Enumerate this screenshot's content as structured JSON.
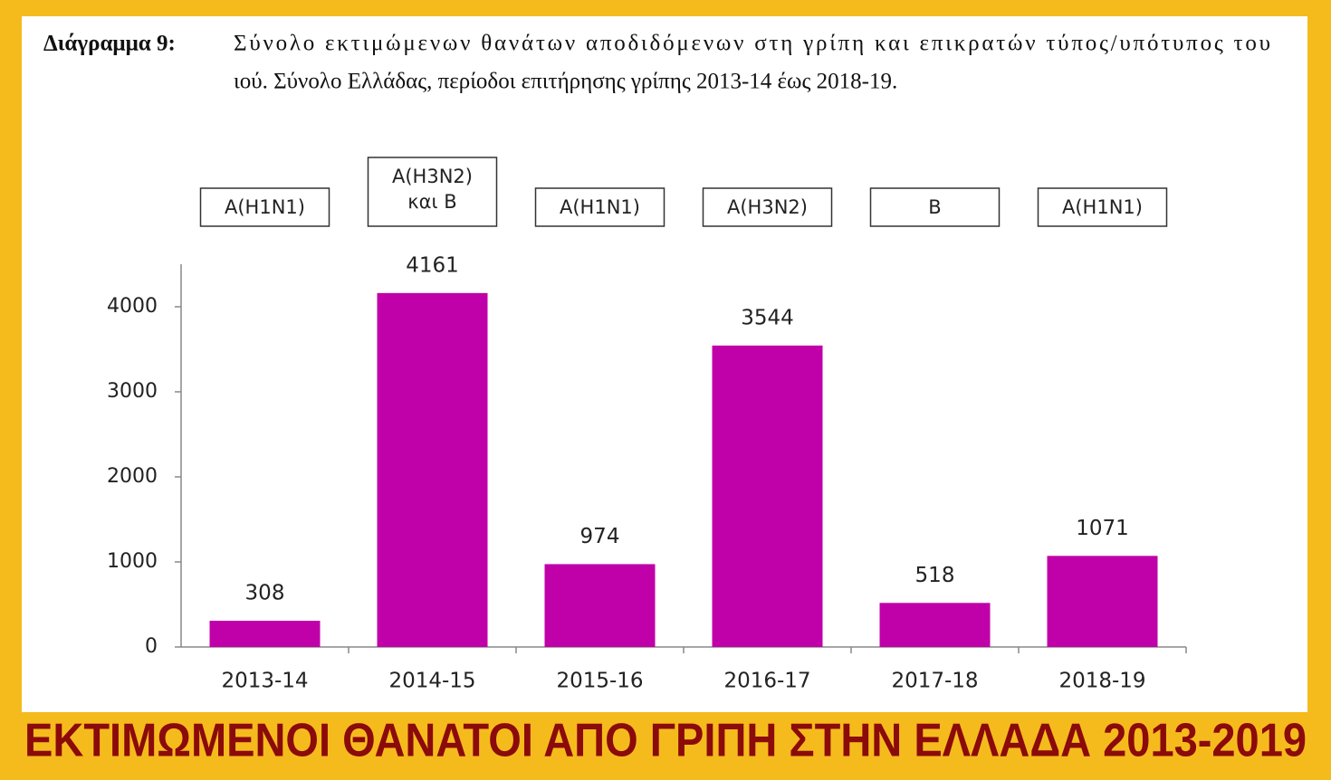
{
  "chart_data": {
    "type": "bar",
    "figure_label": "Διάγραμμα 9:",
    "caption": [
      "Σύνολο εκτιμώμενων θανάτων αποδιδόμενων στη γρίπη και επικρατών τύπος/υπότυπος του",
      "ιού. Σύνολο Ελλάδας, περίοδοι επιτήρησης γρίπης 2013-14 έως 2018-19."
    ],
    "categories": [
      "2013-14",
      "2014-15",
      "2015-16",
      "2016-17",
      "2017-18",
      "2018-19"
    ],
    "values": [
      308,
      4161,
      974,
      3544,
      518,
      1071
    ],
    "strains": [
      [
        "A(H1N1)"
      ],
      [
        "A(H3N2)",
        "και B"
      ],
      [
        "A(H1N1)"
      ],
      [
        "A(H3N2)"
      ],
      [
        "B"
      ],
      [
        "A(H1N1)"
      ]
    ],
    "color": "#c000a8",
    "ylim": [
      0,
      4500
    ],
    "yticks": [
      0,
      1000,
      2000,
      3000,
      4000
    ],
    "banner": "ΕΚΤΙΜΩΜΕΝΟΙ ΘΑΝΑΤΟΙ ΑΠΟ ΓΡΙΠΗ ΣΤΗΝ ΕΛΛΑΔΑ 2013-2019"
  }
}
